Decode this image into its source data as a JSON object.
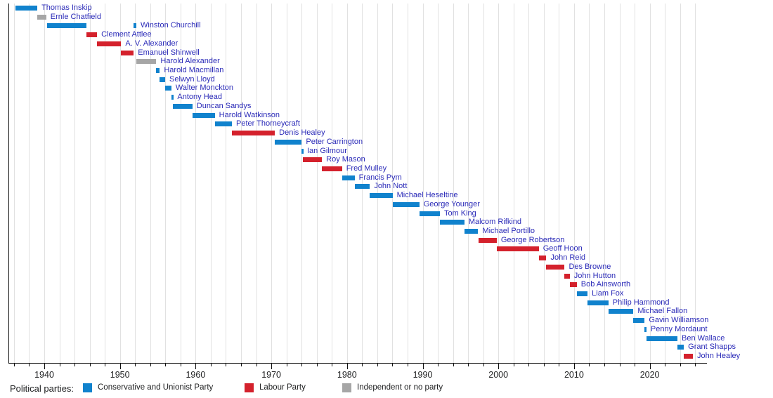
{
  "chart_data": {
    "type": "bar",
    "subtype": "timeline-gantt",
    "title": "",
    "xlabel": "",
    "ylabel": "",
    "axis": {
      "domain_start": 1935.3,
      "domain_end": 2027.6,
      "tick_interval": 2,
      "grid_start": 1936,
      "grid_end": 2026,
      "label_years": [
        1940,
        1950,
        1960,
        1970,
        1980,
        1990,
        2000,
        2010,
        2020
      ],
      "tick_labels": [
        "1940",
        "1950",
        "1960",
        "1970",
        "1980",
        "1990",
        "2000",
        "2010",
        "2020"
      ],
      "grid": "on"
    },
    "people": [
      {
        "name": "Thomas Inskip",
        "party": "conservative",
        "terms": [
          [
            1936.2,
            1939.08
          ]
        ]
      },
      {
        "name": "Ernle Chatfield",
        "party": "independent",
        "terms": [
          [
            1939.08,
            1940.26
          ]
        ]
      },
      {
        "name": "Winston Churchill",
        "party": "conservative",
        "terms": [
          [
            1940.36,
            1945.56
          ],
          [
            1951.82,
            1952.16
          ]
        ]
      },
      {
        "name": "Clement Attlee",
        "party": "labour",
        "terms": [
          [
            1945.57,
            1946.97
          ]
        ]
      },
      {
        "name": "A. V. Alexander",
        "party": "labour",
        "terms": [
          [
            1946.97,
            1950.16
          ]
        ]
      },
      {
        "name": "Emanuel Shinwell",
        "party": "labour",
        "terms": [
          [
            1950.16,
            1951.82
          ]
        ]
      },
      {
        "name": "Harold Alexander",
        "party": "independent",
        "terms": [
          [
            1952.16,
            1954.8
          ]
        ]
      },
      {
        "name": "Harold Macmillan",
        "party": "conservative",
        "terms": [
          [
            1954.8,
            1955.26
          ]
        ]
      },
      {
        "name": "Selwyn Lloyd",
        "party": "conservative",
        "terms": [
          [
            1955.26,
            1955.97
          ]
        ]
      },
      {
        "name": "Walter Monckton",
        "party": "conservative",
        "terms": [
          [
            1955.97,
            1956.8
          ]
        ]
      },
      {
        "name": "Antony Head",
        "party": "conservative",
        "terms": [
          [
            1956.8,
            1957.03
          ]
        ]
      },
      {
        "name": "Duncan Sandys",
        "party": "conservative",
        "terms": [
          [
            1957.03,
            1959.57
          ]
        ]
      },
      {
        "name": "Harold Watkinson",
        "party": "conservative",
        "terms": [
          [
            1959.57,
            1962.53
          ]
        ]
      },
      {
        "name": "Peter Thorneycraft",
        "party": "conservative",
        "terms": [
          [
            1962.53,
            1964.79
          ]
        ]
      },
      {
        "name": "Denis Healey",
        "party": "labour",
        "terms": [
          [
            1964.79,
            1970.47
          ]
        ]
      },
      {
        "name": "Peter Carrington",
        "party": "conservative",
        "terms": [
          [
            1970.47,
            1974.02
          ]
        ]
      },
      {
        "name": "Ian Gilmour",
        "party": "conservative",
        "terms": [
          [
            1974.02,
            1974.17
          ]
        ]
      },
      {
        "name": "Roy Mason",
        "party": "labour",
        "terms": [
          [
            1974.17,
            1976.69
          ]
        ]
      },
      {
        "name": "Fred Mulley",
        "party": "labour",
        "terms": [
          [
            1976.69,
            1979.34
          ]
        ]
      },
      {
        "name": "Francis Pym",
        "party": "conservative",
        "terms": [
          [
            1979.34,
            1981.01
          ]
        ]
      },
      {
        "name": "John Nott",
        "party": "conservative",
        "terms": [
          [
            1981.01,
            1983.02
          ]
        ]
      },
      {
        "name": "Michael Heseltine",
        "party": "conservative",
        "terms": [
          [
            1983.02,
            1986.02
          ]
        ]
      },
      {
        "name": "George Younger",
        "party": "conservative",
        "terms": [
          [
            1986.02,
            1989.56
          ]
        ]
      },
      {
        "name": "Tom King",
        "party": "conservative",
        "terms": [
          [
            1989.56,
            1992.27
          ]
        ]
      },
      {
        "name": "Malcom Rifkind",
        "party": "conservative",
        "terms": [
          [
            1992.27,
            1995.51
          ]
        ]
      },
      {
        "name": "Michael Portillo",
        "party": "conservative",
        "terms": [
          [
            1995.51,
            1997.33
          ]
        ]
      },
      {
        "name": "George Robertson",
        "party": "labour",
        "terms": [
          [
            1997.34,
            1999.78
          ]
        ]
      },
      {
        "name": "Geoff Hoon",
        "party": "labour",
        "terms": [
          [
            1999.78,
            2005.34
          ]
        ]
      },
      {
        "name": "John Reid",
        "party": "labour",
        "terms": [
          [
            2005.34,
            2006.34
          ]
        ]
      },
      {
        "name": "Des Browne",
        "party": "labour",
        "terms": [
          [
            2006.34,
            2008.75
          ]
        ]
      },
      {
        "name": "John Hutton",
        "party": "labour",
        "terms": [
          [
            2008.75,
            2009.43
          ]
        ]
      },
      {
        "name": "Bob Ainsworth",
        "party": "labour",
        "terms": [
          [
            2009.43,
            2010.36
          ]
        ]
      },
      {
        "name": "Liam Fox",
        "party": "conservative",
        "terms": [
          [
            2010.36,
            2011.79
          ]
        ]
      },
      {
        "name": "Philip Hammond",
        "party": "conservative",
        "terms": [
          [
            2011.79,
            2014.54
          ]
        ]
      },
      {
        "name": "Michael Fallon",
        "party": "conservative",
        "terms": [
          [
            2014.54,
            2017.84
          ]
        ]
      },
      {
        "name": "Gavin Williamson",
        "party": "conservative",
        "terms": [
          [
            2017.84,
            2019.33
          ]
        ]
      },
      {
        "name": "Penny Mordaunt",
        "party": "conservative",
        "terms": [
          [
            2019.33,
            2019.56
          ]
        ]
      },
      {
        "name": "Ben Wallace",
        "party": "conservative",
        "terms": [
          [
            2019.56,
            2023.66
          ]
        ]
      },
      {
        "name": "Grant Shapps",
        "party": "conservative",
        "terms": [
          [
            2023.66,
            2024.51
          ]
        ]
      },
      {
        "name": "John Healey",
        "party": "labour",
        "terms": [
          [
            2024.51,
            2025.7
          ]
        ]
      }
    ]
  },
  "legend": {
    "title": "Political parties:",
    "items": [
      {
        "key": "conservative",
        "label": "Conservative and Unionist Party"
      },
      {
        "key": "labour",
        "label": "Labour Party"
      },
      {
        "key": "independent",
        "label": "Independent or no party"
      }
    ]
  },
  "colors": {
    "conservative": "#1082cd",
    "labour": "#d4212c",
    "independent": "#a6a6a6",
    "label_link": "#2b2bb8",
    "axis": "#111111",
    "gridline": "#e1e1e1"
  }
}
